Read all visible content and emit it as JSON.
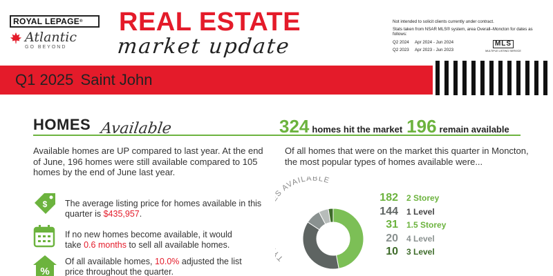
{
  "brand": {
    "top": "ROYAL LEPAGE",
    "reg": "®",
    "script": "Atlantic",
    "tagline": "GO BEYOND"
  },
  "title": {
    "line1": "REAL ESTATE",
    "line2": "market update"
  },
  "notes": {
    "line1": "Not intended to solicit clients currently under contract.",
    "line2": "Stats taken from NSAR MLS® system, area Overall–Moncton for dates as follows:",
    "dates": [
      {
        "q": "Q2 2024",
        "range": "Apr 2024 - Jun 2024"
      },
      {
        "q": "Q2 2023",
        "range": "Apr 2023 - Jun 2023"
      }
    ],
    "mls_logo": "MLS",
    "mls_sub": "MULTIPLE LISTING SERVICE"
  },
  "band": {
    "quarter": "Q1 2025",
    "city": "Saint John"
  },
  "section": {
    "homes": "HOMES",
    "available_script": "Available"
  },
  "stats": {
    "hit_count": "324",
    "hit_label": "homes hit the market",
    "remain_count": "196",
    "remain_label": "remain available"
  },
  "para_left": "Available homes are UP compared to last year. At the end of June, 196 homes were still available compared to 105 homes by the end of June last year.",
  "para_right": "Of all homes that were on the market this quarter in Moncton, the most popular types of homes available were...",
  "items": [
    {
      "pre": "The average listing price for homes available in this quarter is ",
      "value": "$435,957",
      "post": "."
    },
    {
      "pre": "If no new homes become available, it would take ",
      "value": "0.6 months",
      "post": " to sell all available homes."
    },
    {
      "pre": "Of all available homes, ",
      "value": "10.0%",
      "post": " adjusted the list price throughout the quarter."
    }
  ],
  "donut_label": "TYPE OF HOMES AVAILABLE",
  "colors": {
    "red": "#e41b2a",
    "green": "#6cb33e"
  },
  "home_types": [
    {
      "count": "182",
      "label": "2 Storey",
      "value": 182,
      "color": "#7cbf56"
    },
    {
      "count": "144",
      "label": "1 Level",
      "value": 144,
      "color": "#5e6462"
    },
    {
      "count": "31",
      "label": "1.5 Storey",
      "value": 31,
      "color": "#8a9190"
    },
    {
      "count": "20",
      "label": "4 Level",
      "value": 20,
      "color": "#b7bcba"
    },
    {
      "count": "10",
      "label": "3 Level",
      "value": 10,
      "color": "#3e6b2a"
    }
  ]
}
